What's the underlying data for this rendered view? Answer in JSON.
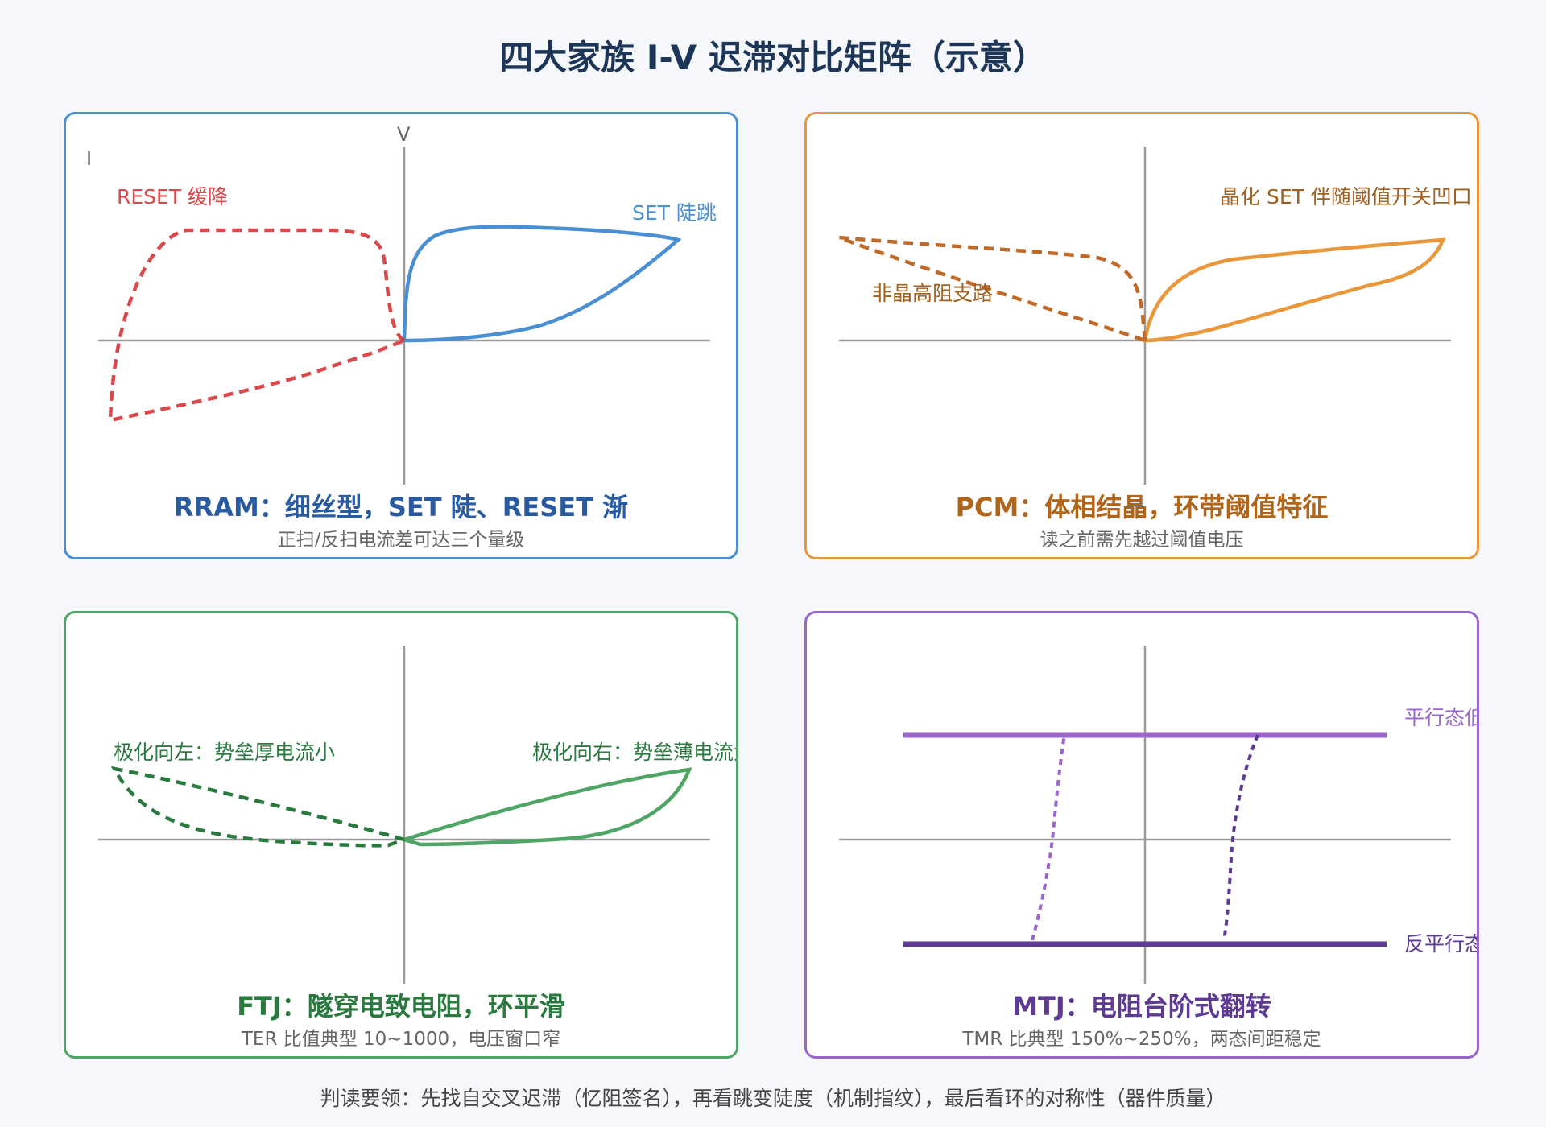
{
  "title": "四大家族 I-V 迟滞对比矩阵（示意）",
  "colors": {
    "rram_set": "#4a8fd4",
    "rram_reset": "#d9484a",
    "pcm": "#e8973a",
    "pcm_amorphous": "#c06a2a",
    "ftj": "#4fa565",
    "ftj_dark": "#2a7a40",
    "mtj": "#9966cc",
    "mtj_dark": "#5e3a92",
    "axis": "#999999"
  },
  "panels": {
    "rram": {
      "heading": "RRAM：细丝型，SET 陡、RESET 渐",
      "subheading": "正扫/反扫电流差可达三个量级",
      "axis_v": "V",
      "axis_i": "I",
      "label_reset": "RESET 缓降",
      "label_set": "SET 陡跳"
    },
    "pcm": {
      "heading": "PCM：体相结晶，环带阈值特征",
      "subheading": "读之前需先越过阈值电压",
      "label_set": "晶化 SET 伴随阈值开关凹口",
      "label_amorphous": "非晶高阻支路"
    },
    "ftj": {
      "heading": "FTJ：隧穿电致电阻，环平滑",
      "subheading": "TER 比值典型 10~1000，电压窗口窄",
      "label_left": "极化向左：势垒厚电流小",
      "label_right": "极化向右：势垒薄电流大"
    },
    "mtj": {
      "heading": "MTJ：电阻台阶式翻转",
      "subheading": "TMR 比典型 150%~250%，两态间距稳定",
      "label_parallel": "平行态低阻",
      "label_antiparallel": "反平行态高阻"
    }
  },
  "footer": "判读要领：先找自交叉迟滞（忆阻签名），再看跳变陡度（机制指纹），最后看环的对称性（器件质量）"
}
